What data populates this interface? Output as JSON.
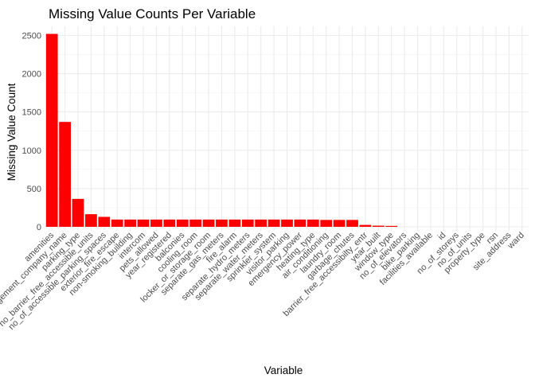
{
  "chart_data": {
    "type": "bar",
    "title": "Missing Value Counts Per Variable",
    "xlabel": "Variable",
    "ylabel": "Missing Value Count",
    "ylim": [
      0,
      2650
    ],
    "yticks": [
      0,
      500,
      1000,
      1500,
      2000,
      2500
    ],
    "bar_color": "#ff0000",
    "grid": true,
    "categories": [
      "amenities",
      "management_company_name",
      "parking_type",
      "no_barrier_free_accessible_units",
      "no_of_accessible_parking_spaces",
      "exterior_fire_escape",
      "non-smoking_building",
      "intercom",
      "pets_allowed",
      "year_registered",
      "balconies",
      "cooling_room",
      "locker_or_storage_room",
      "separate_gas_meters",
      "fire_alarm",
      "separate_hydro_meters",
      "separate_water_meters",
      "sprinkler_system",
      "visitor_parking",
      "emergency_power",
      "heating_type",
      "air_conditioning",
      "laundry_room",
      "garbage_chutes",
      "barrier_free_accessibilty_entr",
      "year_built",
      "window_type",
      "no_of_elevators",
      "bike_parking",
      "facilities_available",
      "id",
      "no_of_storeys",
      "no_of_units",
      "property_type",
      "rsn",
      "site_address",
      "ward"
    ],
    "values": [
      2520,
      1370,
      365,
      165,
      130,
      95,
      95,
      95,
      95,
      95,
      95,
      95,
      95,
      95,
      95,
      95,
      95,
      95,
      95,
      95,
      95,
      90,
      90,
      90,
      25,
      15,
      12,
      0,
      0,
      0,
      0,
      0,
      0,
      0,
      0,
      0,
      0
    ]
  }
}
